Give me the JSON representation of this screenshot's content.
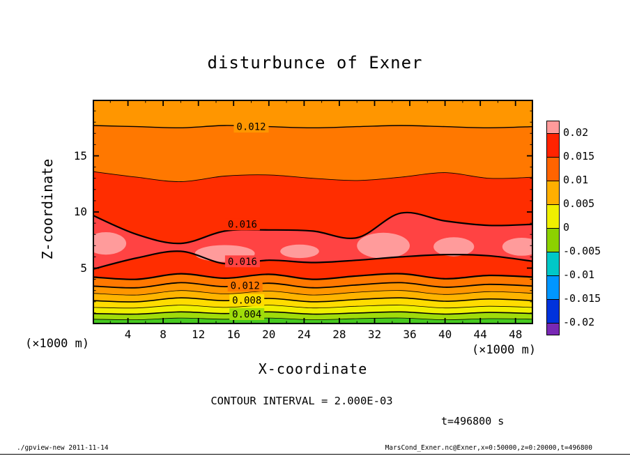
{
  "title": "disturbunce of Exner",
  "axes": {
    "x": {
      "label": "X-coordinate",
      "unit": "(×1000 m)",
      "min": 0,
      "max": 50,
      "major_ticks": [
        4,
        8,
        12,
        16,
        20,
        24,
        28,
        32,
        36,
        40,
        44,
        48
      ],
      "minor_step": 2
    },
    "z": {
      "label": "Z-coordinate",
      "unit": "(×1000 m)",
      "min": 0,
      "max": 20,
      "major_ticks": [
        5,
        10,
        15
      ],
      "minor_step": 1
    }
  },
  "annotations": {
    "contour_interval": "CONTOUR INTERVAL = 2.000E-03",
    "time": "t=496800 s",
    "footer_left": "./gpview-new  2011-11-14",
    "footer_right": "MarsCond_Exner.nc@Exner,x=0:50000,z=0:20000,t=496800"
  },
  "colorbar": {
    "labels": [
      "0.02",
      "0.015",
      "0.01",
      "0.005",
      "0",
      "-0.005",
      "-0.01",
      "-0.015",
      "-0.02"
    ],
    "colors": [
      "#FF9B9B",
      "#FF2300",
      "#FF6400",
      "#FFAF00",
      "#F0F000",
      "#8CD200",
      "#00C8C8",
      "#0096FF",
      "#0032DC",
      "#7828B4"
    ]
  },
  "chart_data": {
    "type": "heatmap",
    "subtype": "filled_contour",
    "title": "disturbunce of Exner",
    "xlabel": "X-coordinate (×1000 m)",
    "ylabel": "Z-coordinate (×1000 m)",
    "x_range": [
      0,
      50
    ],
    "z_range": [
      0,
      20
    ],
    "contour_interval": 0.002,
    "x_samples": [
      0,
      5,
      10,
      15,
      20,
      25,
      30,
      35,
      40,
      45,
      50
    ],
    "boundaries": [
      {
        "level": 0.002,
        "lw": 0.8,
        "z": [
          0.45,
          0.4,
          0.55,
          0.45,
          0.55,
          0.4,
          0.5,
          0.55,
          0.4,
          0.5,
          0.45
        ]
      },
      {
        "level": 0.004,
        "lw": 1.6,
        "z": [
          0.95,
          0.9,
          1.1,
          0.95,
          1.1,
          0.9,
          1.0,
          1.1,
          0.9,
          1.05,
          0.95
        ]
      },
      {
        "level": 0.006,
        "lw": 0.8,
        "z": [
          1.5,
          1.45,
          1.7,
          1.5,
          1.7,
          1.45,
          1.6,
          1.7,
          1.45,
          1.6,
          1.5
        ]
      },
      {
        "level": 0.008,
        "lw": 1.6,
        "z": [
          2.1,
          2.0,
          2.35,
          2.1,
          2.3,
          2.0,
          2.2,
          2.35,
          2.05,
          2.25,
          2.1
        ]
      },
      {
        "level": 0.01,
        "lw": 0.8,
        "z": [
          2.75,
          2.6,
          3.0,
          2.7,
          2.95,
          2.6,
          2.85,
          3.0,
          2.65,
          2.9,
          2.75
        ]
      },
      {
        "level": 0.012,
        "lw": 1.8,
        "z": [
          3.4,
          3.25,
          3.7,
          3.35,
          3.65,
          3.25,
          3.5,
          3.7,
          3.3,
          3.55,
          3.4
        ]
      },
      {
        "level": 0.014,
        "lw": 2.2,
        "z": [
          4.2,
          4.0,
          4.5,
          4.1,
          4.45,
          4.0,
          4.3,
          4.5,
          4.05,
          4.35,
          4.2
        ]
      },
      {
        "level": 0.016,
        "lw": 2.2,
        "z": [
          4.9,
          5.9,
          6.5,
          5.4,
          5.7,
          5.5,
          5.7,
          6.0,
          6.2,
          6.1,
          5.6
        ]
      },
      {
        "level": 0.016,
        "lw": 2.2,
        "z": [
          9.7,
          8.0,
          7.2,
          8.3,
          8.4,
          8.3,
          7.7,
          9.9,
          9.2,
          8.8,
          8.9
        ]
      },
      {
        "level": 0.014,
        "lw": 0.9,
        "z": [
          13.6,
          13.1,
          12.7,
          13.2,
          13.3,
          13.0,
          12.8,
          13.1,
          13.5,
          13.0,
          13.1
        ]
      },
      {
        "level": 0.012,
        "lw": 1.4,
        "z": [
          17.7,
          17.6,
          17.5,
          17.7,
          17.6,
          17.5,
          17.6,
          17.7,
          17.6,
          17.5,
          17.6
        ]
      }
    ],
    "fill_colors": [
      "#46C81E",
      "#A0DC0A",
      "#F0F000",
      "#FFDC00",
      "#FFB400",
      "#FF9600",
      "#FF7800",
      "#FF2D00",
      "#FF4343",
      "#FF2D00",
      "#FF7800",
      "#FF9600"
    ],
    "blob_color": "#FF9B9B",
    "blobs": [
      {
        "x": 1.5,
        "z": 7.2,
        "rx": 2.3,
        "rz": 1.0
      },
      {
        "x": 15.0,
        "z": 6.3,
        "rx": 3.4,
        "rz": 0.75
      },
      {
        "x": 23.5,
        "z": 6.5,
        "rx": 2.2,
        "rz": 0.6
      },
      {
        "x": 33.0,
        "z": 7.0,
        "rx": 3.0,
        "rz": 1.15
      },
      {
        "x": 41.0,
        "z": 6.9,
        "rx": 2.3,
        "rz": 0.85
      },
      {
        "x": 48.7,
        "z": 6.9,
        "rx": 2.2,
        "rz": 0.8
      }
    ],
    "contour_labels": [
      {
        "text": "0.012",
        "x": 18.0,
        "z": 17.6,
        "bg": "#FF9600"
      },
      {
        "text": "0.016",
        "x": 17.0,
        "z": 8.9,
        "bg": "#FF2D00"
      },
      {
        "text": "0.016",
        "x": 17.0,
        "z": 5.6,
        "bg": "#FF4343"
      },
      {
        "text": "0.012",
        "x": 17.3,
        "z": 3.45,
        "bg": "#FF7800"
      },
      {
        "text": "0.008",
        "x": 17.5,
        "z": 2.15,
        "bg": "#FFDC00"
      },
      {
        "text": "0.004",
        "x": 17.5,
        "z": 0.9,
        "bg": "#A0DC0A"
      }
    ]
  }
}
